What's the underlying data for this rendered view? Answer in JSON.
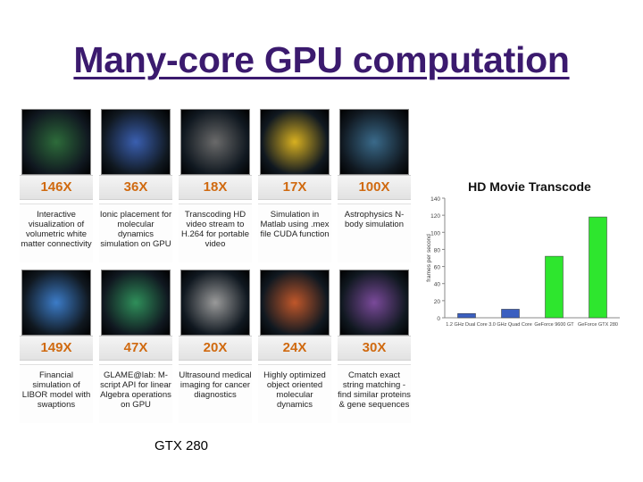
{
  "slide": {
    "title": "Many-core GPU computation",
    "caption": "GTX 280"
  },
  "tiles": [
    {
      "speedup": "146X",
      "description": "Interactive visualization of volumetric white matter connectivity",
      "icon": "brain-volume-image",
      "color": "#2d6b3a"
    },
    {
      "speedup": "36X",
      "description": "Ionic placement for molecular dynamics simulation on GPU",
      "icon": "molecule-image",
      "color": "#3a5fb0"
    },
    {
      "speedup": "18X",
      "description": "Transcoding HD video stream to H.264 for portable video",
      "icon": "video-frames-image",
      "color": "#6a6a6a"
    },
    {
      "speedup": "17X",
      "description": "Simulation in Matlab using .mex file CUDA function",
      "icon": "heatmap-image",
      "color": "#d8b020"
    },
    {
      "speedup": "100X",
      "description": "Astrophysics N-body simulation",
      "icon": "galaxy-image",
      "color": "#3a6a8a"
    },
    {
      "speedup": "149X",
      "description": "Financial simulation of LIBOR model with swaptions",
      "icon": "finance-chart-image",
      "color": "#3c7cc8"
    },
    {
      "speedup": "47X",
      "description": "GLAME@lab: M-script API for linear Algebra operations on GPU",
      "icon": "mesh-image",
      "color": "#2f8f5a"
    },
    {
      "speedup": "20X",
      "description": "Ultrasound medical imaging for cancer diagnostics",
      "icon": "ultrasound-image",
      "color": "#9a9a9a"
    },
    {
      "speedup": "24X",
      "description": "Highly optimized object oriented molecular dynamics",
      "icon": "molecular-dynamics-image",
      "color": "#c0572a"
    },
    {
      "speedup": "30X",
      "description": "Cmatch exact string matching - find similar proteins & gene sequences",
      "icon": "sequence-image",
      "color": "#7a4a9a"
    }
  ],
  "chart_data": {
    "type": "bar",
    "title": "HD Movie Transcode",
    "ylabel": "frames per second",
    "ylim": [
      0,
      140
    ],
    "yticks": [
      0,
      20,
      40,
      60,
      80,
      100,
      120,
      140
    ],
    "categories": [
      "1.2 GHz Dual Core",
      "3.0 GHz Quad Core",
      "GeForce 9600 GT",
      "GeForce GTX 280"
    ],
    "values": [
      5,
      10,
      72,
      118
    ],
    "colors": [
      "#3b5fc0",
      "#3b5fc0",
      "#2ee62e",
      "#2ee62e"
    ],
    "grid": false,
    "legend": "none"
  }
}
